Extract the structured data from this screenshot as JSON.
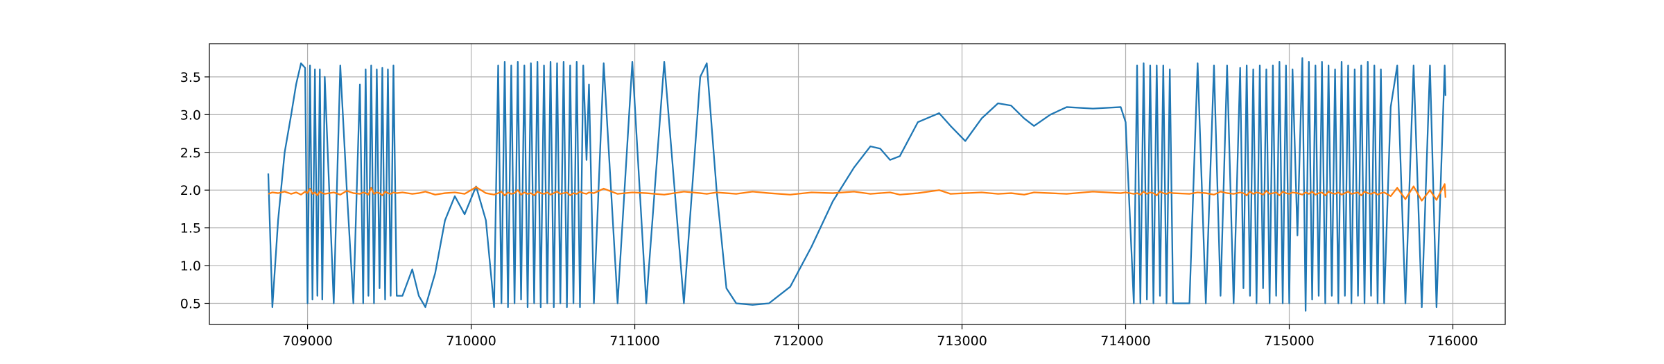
{
  "chart_data": {
    "type": "line",
    "x": [
      708760,
      708785,
      708820,
      708860,
      708900,
      708930,
      708960,
      708985,
      709000,
      709015,
      709030,
      709045,
      709060,
      709075,
      709090,
      709105,
      709160,
      709200,
      709240,
      709280,
      709320,
      709340,
      709355,
      709372,
      709389,
      709406,
      709423,
      709440,
      709457,
      709474,
      709491,
      709508,
      709525,
      709545,
      709580,
      709640,
      709680,
      709720,
      709780,
      709840,
      709900,
      709960,
      710030,
      710090,
      710140,
      710165,
      710185,
      710205,
      710225,
      710245,
      710265,
      710285,
      710305,
      710325,
      710345,
      710365,
      710385,
      710405,
      710425,
      710445,
      710465,
      710485,
      710505,
      710525,
      710545,
      710565,
      710585,
      710605,
      710625,
      710645,
      710665,
      710685,
      710705,
      710720,
      710750,
      710810,
      710895,
      710985,
      711070,
      711180,
      711300,
      711400,
      711440,
      711500,
      711560,
      711620,
      711720,
      711820,
      711950,
      712080,
      712210,
      712340,
      712440,
      712500,
      712560,
      712620,
      712730,
      712860,
      712930,
      713020,
      713120,
      713220,
      713300,
      713380,
      713440,
      713540,
      713640,
      713800,
      713970,
      714000,
      714050,
      714070,
      714090,
      714110,
      714130,
      714150,
      714170,
      714190,
      714210,
      714230,
      714250,
      714270,
      714290,
      714390,
      714440,
      714490,
      714540,
      714580,
      714620,
      714660,
      714700,
      714720,
      714740,
      714760,
      714780,
      714800,
      714820,
      714840,
      714860,
      714880,
      714900,
      714920,
      714940,
      714960,
      714980,
      715000,
      715020,
      715050,
      715080,
      715100,
      715120,
      715140,
      715160,
      715180,
      715200,
      715220,
      715240,
      715260,
      715280,
      715300,
      715320,
      715340,
      715360,
      715380,
      715400,
      715420,
      715440,
      715460,
      715480,
      715500,
      715520,
      715540,
      715560,
      715580,
      715620,
      715660,
      715710,
      715760,
      715810,
      715860,
      715900,
      715950,
      715955
    ],
    "series": [
      {
        "color": "#1f77b4",
        "values": [
          2.22,
          0.45,
          1.6,
          2.5,
          3.0,
          3.4,
          3.68,
          3.62,
          0.5,
          3.65,
          0.55,
          3.6,
          0.6,
          3.6,
          0.55,
          3.5,
          0.5,
          3.65,
          2.0,
          0.5,
          3.4,
          0.5,
          3.6,
          0.6,
          3.65,
          0.5,
          3.6,
          0.7,
          3.62,
          0.55,
          3.6,
          0.6,
          3.65,
          0.6,
          0.6,
          0.95,
          0.6,
          0.45,
          0.9,
          1.6,
          1.92,
          1.68,
          2.05,
          1.6,
          0.45,
          3.65,
          0.5,
          3.7,
          0.45,
          3.65,
          0.5,
          3.7,
          0.55,
          3.65,
          0.45,
          3.68,
          0.5,
          3.7,
          0.45,
          3.65,
          0.5,
          3.7,
          0.45,
          3.68,
          0.5,
          3.7,
          0.45,
          3.65,
          0.5,
          3.7,
          0.45,
          3.65,
          2.4,
          3.4,
          0.5,
          3.68,
          0.5,
          3.7,
          0.5,
          3.7,
          0.5,
          3.5,
          3.68,
          2.0,
          0.7,
          0.5,
          0.48,
          0.5,
          0.72,
          1.25,
          1.85,
          2.3,
          2.58,
          2.55,
          2.4,
          2.45,
          2.9,
          3.02,
          2.85,
          2.65,
          2.95,
          3.15,
          3.12,
          2.95,
          2.85,
          3.0,
          3.1,
          3.08,
          3.1,
          2.9,
          0.5,
          3.65,
          0.5,
          3.68,
          0.55,
          3.65,
          0.5,
          3.65,
          0.6,
          3.65,
          0.5,
          3.6,
          0.5,
          0.5,
          3.68,
          0.5,
          3.65,
          0.6,
          3.65,
          0.5,
          3.62,
          0.7,
          3.65,
          0.6,
          3.6,
          0.5,
          3.65,
          0.7,
          3.6,
          0.5,
          3.65,
          0.6,
          3.7,
          0.5,
          3.65,
          0.5,
          3.6,
          1.4,
          3.75,
          0.4,
          3.7,
          0.55,
          3.65,
          0.6,
          3.7,
          0.5,
          3.65,
          0.6,
          3.6,
          0.5,
          3.7,
          0.6,
          3.65,
          0.5,
          3.6,
          0.6,
          3.65,
          0.5,
          3.7,
          0.6,
          3.65,
          0.5,
          3.6,
          0.5,
          3.1,
          3.65,
          0.5,
          3.65,
          0.45,
          3.65,
          0.45,
          3.65,
          3.25
        ]
      },
      {
        "color": "#ff7f0e",
        "values": [
          1.95,
          1.97,
          1.96,
          1.98,
          1.95,
          1.97,
          1.94,
          1.98,
          1.96,
          2.02,
          1.95,
          1.97,
          1.93,
          1.98,
          1.96,
          1.95,
          1.97,
          1.94,
          1.99,
          1.96,
          1.95,
          1.97,
          1.96,
          1.94,
          2.03,
          1.95,
          1.97,
          1.96,
          1.93,
          1.98,
          1.96,
          1.95,
          1.97,
          1.96,
          1.97,
          1.95,
          1.96,
          1.98,
          1.94,
          1.96,
          1.97,
          1.95,
          2.04,
          1.96,
          1.94,
          1.96,
          1.98,
          1.93,
          1.97,
          1.95,
          1.96,
          2.0,
          1.94,
          1.97,
          1.95,
          1.96,
          1.93,
          1.98,
          1.96,
          1.95,
          1.97,
          1.94,
          1.96,
          1.98,
          1.95,
          1.96,
          1.97,
          1.93,
          1.96,
          1.95,
          1.98,
          1.96,
          1.95,
          1.97,
          1.96,
          2.02,
          1.95,
          1.97,
          1.96,
          1.94,
          1.98,
          1.96,
          1.95,
          1.97,
          1.96,
          1.95,
          1.98,
          1.96,
          1.94,
          1.97,
          1.96,
          1.98,
          1.95,
          1.96,
          1.97,
          1.94,
          1.96,
          2.0,
          1.95,
          1.96,
          1.97,
          1.95,
          1.96,
          1.94,
          1.97,
          1.96,
          1.95,
          1.98,
          1.96,
          1.97,
          1.95,
          1.96,
          1.94,
          1.98,
          1.95,
          1.97,
          1.96,
          1.93,
          1.98,
          1.96,
          1.95,
          1.97,
          1.96,
          1.95,
          1.97,
          1.96,
          1.94,
          1.98,
          1.96,
          1.95,
          1.97,
          1.96,
          1.93,
          1.98,
          1.95,
          1.97,
          1.96,
          1.94,
          1.99,
          1.95,
          1.96,
          1.97,
          1.93,
          1.98,
          1.96,
          1.95,
          1.97,
          1.96,
          1.94,
          1.97,
          1.95,
          1.98,
          1.94,
          1.96,
          1.97,
          1.93,
          1.98,
          1.96,
          1.95,
          1.97,
          1.94,
          1.96,
          1.98,
          1.95,
          1.96,
          1.97,
          1.93,
          1.98,
          1.96,
          1.95,
          1.97,
          1.94,
          1.96,
          1.97,
          1.92,
          2.03,
          1.88,
          2.05,
          1.86,
          2.0,
          1.87,
          2.08,
          1.9
        ]
      }
    ],
    "xlim": [
      708400,
      716320
    ],
    "xticks": [
      709000,
      710000,
      711000,
      712000,
      713000,
      714000,
      715000,
      716000
    ],
    "ylim": [
      0.22,
      3.94
    ],
    "yticks": [
      0.5,
      {
        "value": 1,
        "label": "1.0"
      },
      1.5,
      {
        "value": 2,
        "label": "2.0"
      },
      2.5,
      {
        "value": 3,
        "label": "3.0"
      },
      3.5
    ],
    "grid": true
  }
}
